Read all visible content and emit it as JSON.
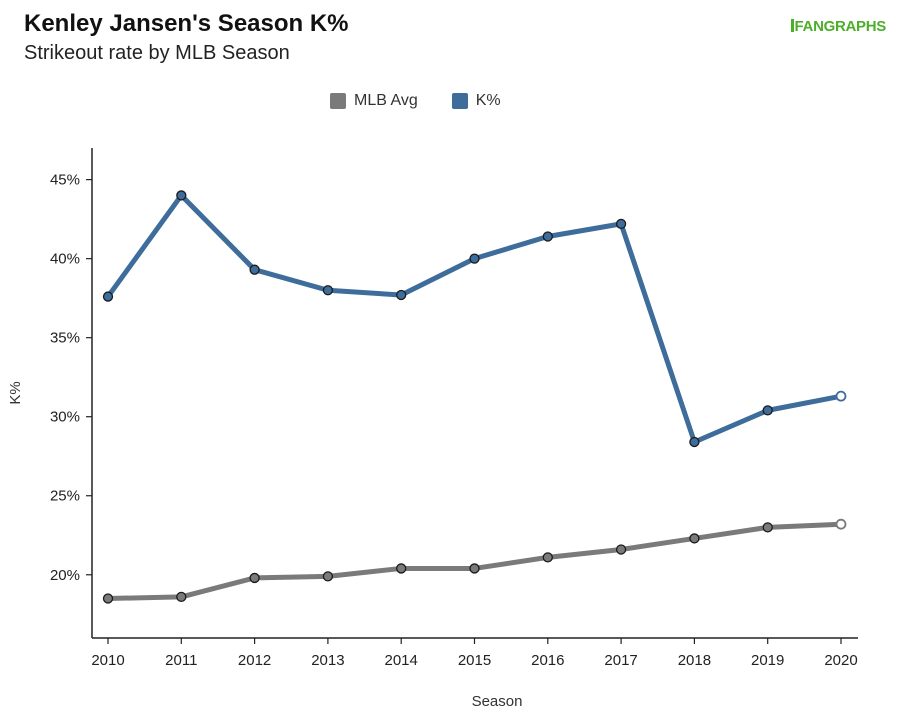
{
  "header": {
    "title": "Kenley Jansen's Season K%",
    "subtitle": "Strikeout rate by MLB Season",
    "logo_text": "FANGRAPHS"
  },
  "chart_data": {
    "type": "line",
    "title": "Kenley Jansen's Season K%",
    "subtitle": "Strikeout rate by MLB Season",
    "xlabel": "Season",
    "ylabel": "K%",
    "x": [
      2010,
      2011,
      2012,
      2013,
      2014,
      2015,
      2016,
      2017,
      2018,
      2019,
      2020
    ],
    "x_tick_labels": [
      "2010",
      "2011",
      "2012",
      "2013",
      "2014",
      "2015",
      "2016",
      "2017",
      "2018",
      "2019",
      "2020"
    ],
    "ylim": [
      16,
      47
    ],
    "y_ticks": [
      20,
      25,
      30,
      35,
      40,
      45
    ],
    "y_tick_labels": [
      "20%",
      "25%",
      "30%",
      "35%",
      "40%",
      "45%"
    ],
    "grid": false,
    "legend_position": "top-center",
    "series": [
      {
        "name": "MLB Avg",
        "color": "#7a7a7a",
        "values": [
          18.5,
          18.6,
          19.8,
          19.9,
          20.4,
          20.4,
          21.1,
          21.6,
          22.3,
          23.0,
          23.2
        ]
      },
      {
        "name": "K%",
        "color": "#3e6c9b",
        "values": [
          37.6,
          44.0,
          39.3,
          38.0,
          37.7,
          40.0,
          41.4,
          42.2,
          28.4,
          30.4,
          31.3
        ]
      }
    ]
  }
}
